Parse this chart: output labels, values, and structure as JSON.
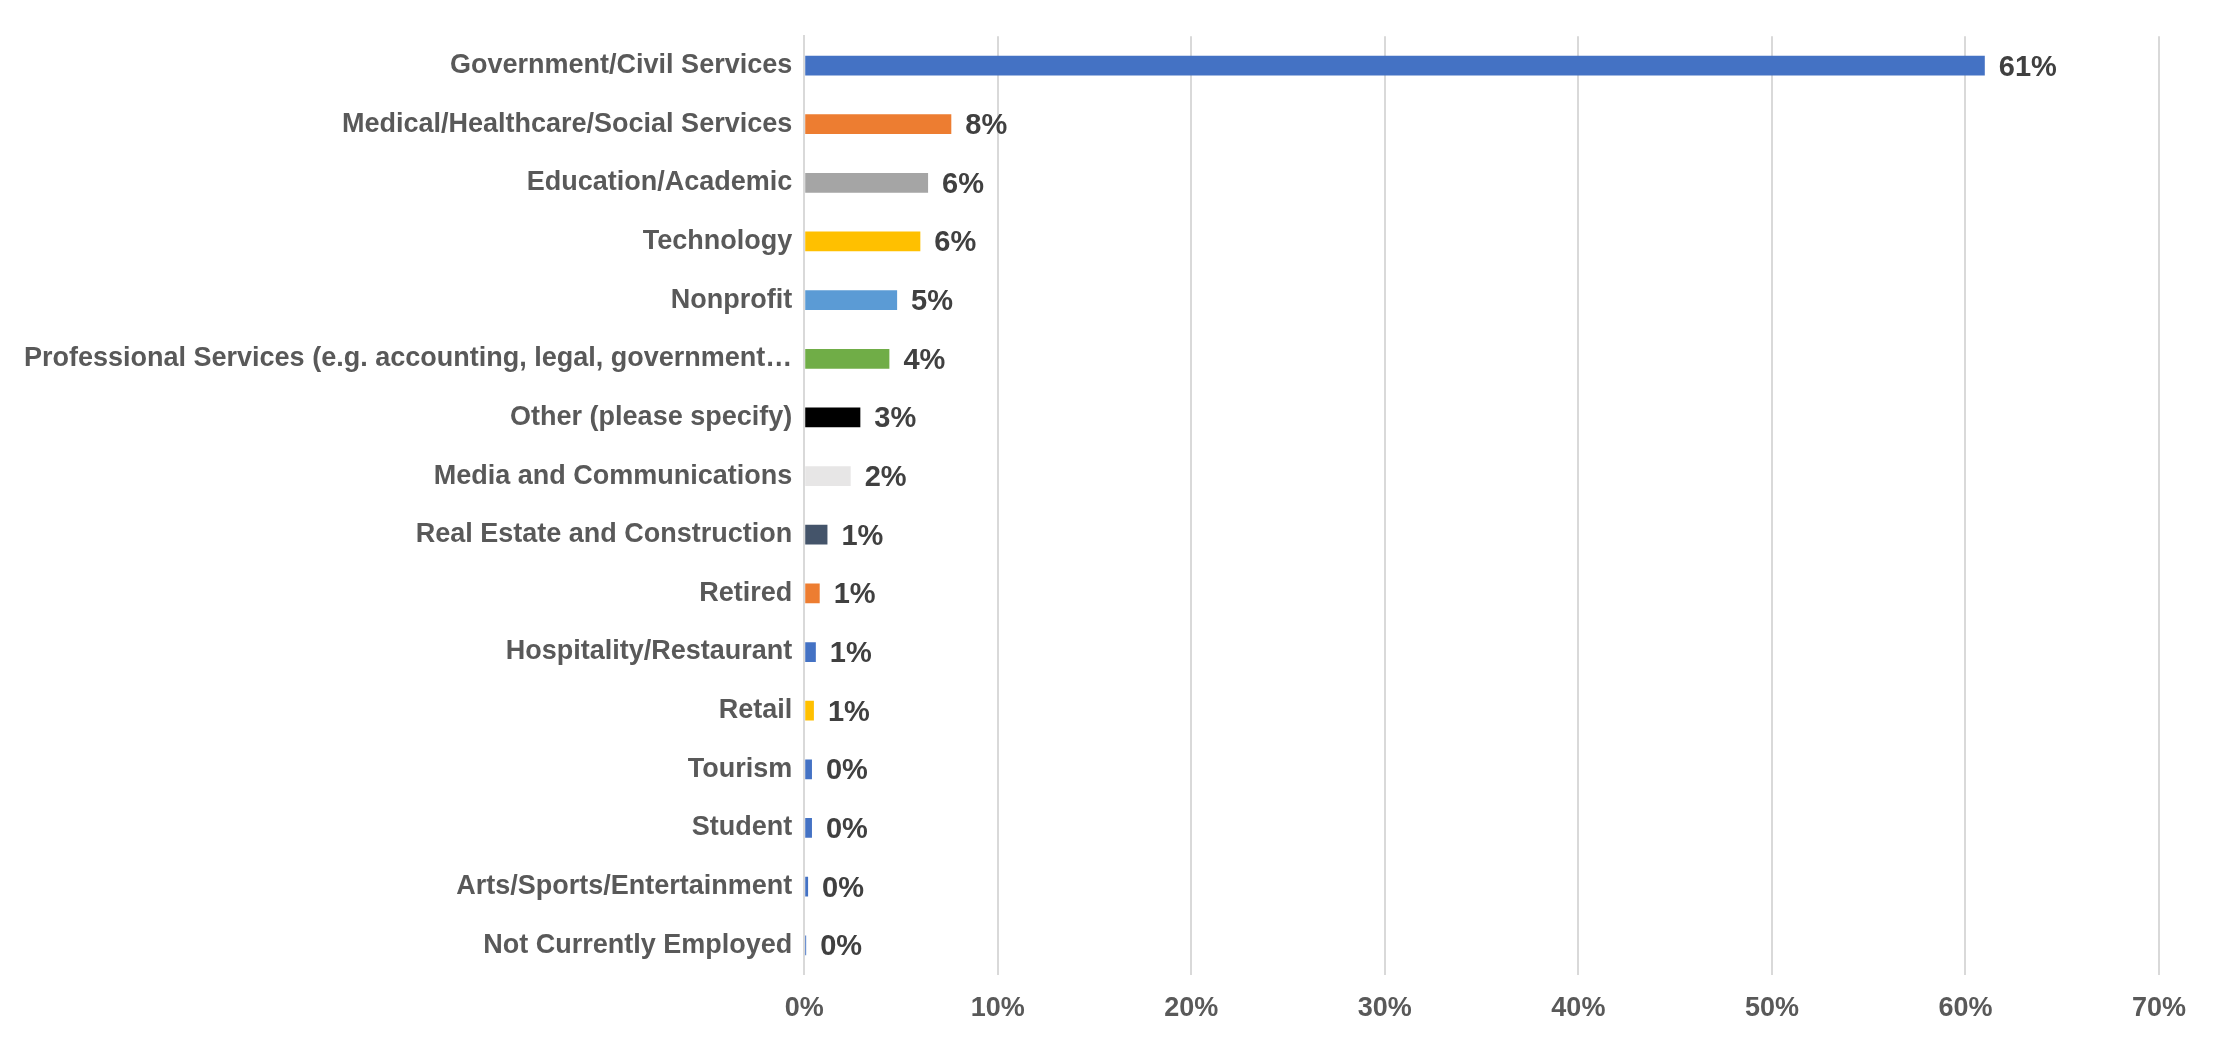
{
  "chart_data": {
    "type": "bar",
    "orientation": "horizontal",
    "categories": [
      "Government/Civil Services",
      "Medical/Healthcare/Social Services",
      "Education/Academic",
      "Technology",
      "Nonprofit",
      "Professional Services (e.g. accounting, legal, government…",
      "Other (please specify)",
      "Media and Communications",
      "Real Estate and Construction",
      "Retired",
      "Hospitality/Restaurant",
      "Retail",
      "Tourism",
      "Student",
      "Arts/Sports/Entertainment",
      "Not Currently Employed"
    ],
    "values": [
      61,
      7.6,
      6.4,
      6.0,
      4.8,
      4.4,
      2.9,
      2.4,
      1.2,
      0.8,
      0.6,
      0.5,
      0.4,
      0.4,
      0.2,
      0.1
    ],
    "colors": [
      "#4472c4",
      "#ed7d31",
      "#a5a5a5",
      "#ffc000",
      "#5b9bd5",
      "#70ad47",
      "#000000",
      "#e7e6e6",
      "#44546a",
      "#ed7d31",
      "#4472c4",
      "#ffc000",
      "#4472c4",
      "#4472c4",
      "#4472c4",
      "#4472c4"
    ],
    "value_labels": [
      "61%",
      "8%",
      "6%",
      "6%",
      "5%",
      "4%",
      "3%",
      "2%",
      "1%",
      "1%",
      "1%",
      "1%",
      "0%",
      "0%",
      "0%",
      "0%"
    ],
    "xlim": [
      0,
      70
    ],
    "xticks": [
      {
        "value": 0,
        "label": "0%"
      },
      {
        "value": 10,
        "label": "10%"
      },
      {
        "value": 20,
        "label": "20%"
      },
      {
        "value": 30,
        "label": "30%"
      },
      {
        "value": 40,
        "label": "40%"
      },
      {
        "value": 50,
        "label": "50%"
      },
      {
        "value": 60,
        "label": "60%"
      },
      {
        "value": 70,
        "label": "70%"
      }
    ],
    "grid": "x",
    "legend": false
  }
}
